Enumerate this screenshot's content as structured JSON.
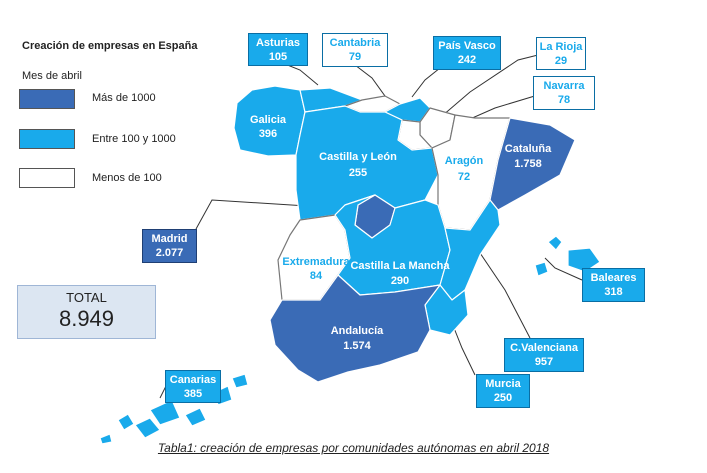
{
  "legend": {
    "title": "Creación de empresas en España",
    "subtitle": "Mes de abril",
    "items": [
      {
        "label": "Más de 1000",
        "color": "#3a6bb6"
      },
      {
        "label": "Entre 100 y 1000",
        "color": "#19aaeb"
      },
      {
        "label": "Menos de 100",
        "color": "#ffffff"
      }
    ]
  },
  "total": {
    "label": "TOTAL",
    "value": "8.949"
  },
  "regions": {
    "galicia": {
      "name": "Galicia",
      "value": "396"
    },
    "castilla_leon": {
      "name": "Castilla y León",
      "value": "255"
    },
    "aragon": {
      "name": "Aragón",
      "value": "72"
    },
    "cataluna": {
      "name": "Cataluña",
      "value": "1.758"
    },
    "extremadura": {
      "name": "Extremadura",
      "value": "84"
    },
    "castilla_mancha": {
      "name": "Castilla La Mancha",
      "value": "290"
    },
    "andalucia": {
      "name": "Andalucía",
      "value": "1.574"
    }
  },
  "callouts": {
    "asturias": {
      "name": "Asturias",
      "value": "105"
    },
    "cantabria": {
      "name": "Cantabria",
      "value": "79"
    },
    "pais_vasco": {
      "name": "País Vasco",
      "value": "242"
    },
    "la_rioja": {
      "name": "La Rioja",
      "value": "29"
    },
    "navarra": {
      "name": "Navarra",
      "value": "78"
    },
    "madrid": {
      "name": "Madrid",
      "value": "2.077"
    },
    "baleares": {
      "name": "Baleares",
      "value": "318"
    },
    "c_valenciana": {
      "name": "C.Valenciana",
      "value": "957"
    },
    "murcia": {
      "name": "Murcia",
      "value": "250"
    },
    "canarias": {
      "name": "Canarias",
      "value": "385"
    }
  },
  "colors": {
    "dark": "#3a6bb6",
    "mid": "#19aaeb",
    "light": "#ffffff",
    "border": "#0a6ea4"
  },
  "caption": "Tabla1: creación de empresas por comunidades autónomas en abril 2018"
}
